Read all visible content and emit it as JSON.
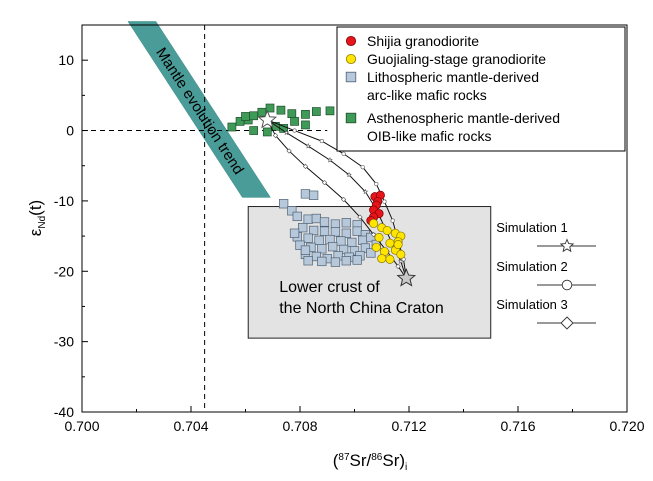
{
  "chart_data": {
    "type": "scatter",
    "xlabel": "(87Sr/86Sr)i",
    "xlabel_parts": {
      "open": "(",
      "sup1": "87",
      "mid": "Sr/",
      "sup2": "86",
      "close": "Sr)",
      "sub": "i"
    },
    "ylabel_parts": {
      "main": "ε",
      "sub": "Nd",
      "tail": "(t)"
    },
    "xlim": [
      0.7,
      0.72
    ],
    "ylim": [
      -40,
      15
    ],
    "xticks": [
      0.7,
      0.704,
      0.708,
      0.712,
      0.716,
      0.72
    ],
    "xtick_labels": [
      "0.700",
      "0.704",
      "0.708",
      "0.712",
      "0.716",
      "0.720"
    ],
    "yticks": [
      -40,
      -30,
      -20,
      -10,
      0,
      10
    ],
    "ytick_labels": [
      "-40",
      "-30",
      "-20",
      "-10",
      "0",
      "10"
    ],
    "reference_lines": {
      "x": 0.7045,
      "y": 0
    },
    "colors": {
      "shijia": "#e8141b",
      "guojialing": "#ffe500",
      "lithospheric": "#b6c8da",
      "asthenospheric": "#3f9a57",
      "mantle_band": "#4a9c98",
      "crust_box": "#e3e3e3"
    },
    "mantle_band": {
      "label": "Mantle evolution trend",
      "start": [
        0.7022,
        15.5
      ],
      "end": [
        0.7064,
        -9.5
      ]
    },
    "crust_box": {
      "label_line1": "Lower crust of",
      "label_line2": "the North China Craton",
      "x_range": [
        0.7061,
        0.715
      ],
      "y_range": [
        -29.5,
        -10.8
      ]
    },
    "endmembers": {
      "mantle_star": [
        0.7068,
        1.5
      ],
      "crust_star": [
        0.7119,
        -21.0
      ]
    },
    "legend_entries": [
      {
        "label": "Shijia granodiorite",
        "marker": "circle",
        "series": "shijia"
      },
      {
        "label": "Guojialing-stage granodiorite",
        "marker": "circle",
        "series": "guojialing"
      },
      {
        "label": "Lithospheric mantle-derived",
        "label2": "arc-like mafic rocks",
        "marker": "square",
        "series": "lithospheric"
      },
      {
        "label": "Asthenospheric mantle-derived",
        "label2": "OIB-like mafic rocks",
        "marker": "square",
        "series": "asthenospheric"
      }
    ],
    "simulation_legend": [
      {
        "label": "Simulation 1",
        "marker": "star"
      },
      {
        "label": "Simulation 2",
        "marker": "circle"
      },
      {
        "label": "Simulation 3",
        "marker": "diamond"
      }
    ],
    "series": [
      {
        "name": "Shijia granodiorite",
        "key": "shijia",
        "points": [
          [
            0.71075,
            -9.4
          ],
          [
            0.71095,
            -9.2
          ],
          [
            0.71085,
            -10.1
          ],
          [
            0.7108,
            -10.6
          ],
          [
            0.7107,
            -11.3
          ],
          [
            0.7109,
            -11.8
          ],
          [
            0.7107,
            -12.3
          ],
          [
            0.7106,
            -12.8
          ]
        ]
      },
      {
        "name": "Guojialing-stage granodiorite",
        "key": "guojialing",
        "points": [
          [
            0.7107,
            -13.2
          ],
          [
            0.711,
            -13.8
          ],
          [
            0.7112,
            -14.2
          ],
          [
            0.7115,
            -14.6
          ],
          [
            0.7117,
            -15.0
          ],
          [
            0.7116,
            -15.8
          ],
          [
            0.7113,
            -16.0
          ],
          [
            0.7108,
            -16.6
          ],
          [
            0.7111,
            -17.2
          ],
          [
            0.7115,
            -17.0
          ],
          [
            0.7117,
            -17.6
          ],
          [
            0.7113,
            -18.3
          ],
          [
            0.711,
            -18.2
          ],
          [
            0.7116,
            -16.2
          ],
          [
            0.7109,
            -15.2
          ]
        ]
      },
      {
        "name": "Lithospheric mantle-derived arc-like mafic rocks",
        "key": "lithospheric",
        "points": [
          [
            0.7082,
            -9.0
          ],
          [
            0.7085,
            -9.2
          ],
          [
            0.7074,
            -10.4
          ],
          [
            0.7077,
            -11.4
          ],
          [
            0.7079,
            -12.2
          ],
          [
            0.7083,
            -12.6
          ],
          [
            0.7086,
            -12.5
          ],
          [
            0.7089,
            -13.0
          ],
          [
            0.7093,
            -13.3
          ],
          [
            0.7097,
            -13.1
          ],
          [
            0.7101,
            -13.4
          ],
          [
            0.7081,
            -13.8
          ],
          [
            0.7085,
            -14.2
          ],
          [
            0.7089,
            -14.3
          ],
          [
            0.7093,
            -14.4
          ],
          [
            0.7097,
            -14.6
          ],
          [
            0.7101,
            -14.3
          ],
          [
            0.7104,
            -14.8
          ],
          [
            0.7079,
            -15.1
          ],
          [
            0.7083,
            -15.3
          ],
          [
            0.7087,
            -15.6
          ],
          [
            0.7091,
            -15.5
          ],
          [
            0.7095,
            -15.7
          ],
          [
            0.7099,
            -15.9
          ],
          [
            0.7103,
            -15.6
          ],
          [
            0.7106,
            -15.2
          ],
          [
            0.708,
            -16.3
          ],
          [
            0.7084,
            -16.6
          ],
          [
            0.7088,
            -16.8
          ],
          [
            0.7092,
            -16.5
          ],
          [
            0.7096,
            -16.9
          ],
          [
            0.71,
            -17.1
          ],
          [
            0.7104,
            -16.7
          ],
          [
            0.7082,
            -17.6
          ],
          [
            0.7086,
            -17.9
          ],
          [
            0.709,
            -18.2
          ],
          [
            0.7094,
            -17.8
          ],
          [
            0.7098,
            -18.0
          ],
          [
            0.7102,
            -17.8
          ],
          [
            0.7106,
            -17.4
          ],
          [
            0.7083,
            -18.5
          ],
          [
            0.7088,
            -18.6
          ],
          [
            0.7093,
            -18.7
          ],
          [
            0.7097,
            -18.5
          ],
          [
            0.7101,
            -18.4
          ],
          [
            0.7078,
            -14.6
          ],
          [
            0.7082,
            -17.0
          ],
          [
            0.7108,
            -16.2
          ]
        ]
      },
      {
        "name": "Asthenospheric mantle-derived OIB-like mafic rocks",
        "key": "asthenospheric",
        "points": [
          [
            0.7055,
            0.5
          ],
          [
            0.7058,
            1.3
          ],
          [
            0.7061,
            1.5
          ],
          [
            0.7063,
            2.1
          ],
          [
            0.7066,
            2.6
          ],
          [
            0.7069,
            3.2
          ],
          [
            0.7073,
            2.9
          ],
          [
            0.7077,
            2.4
          ],
          [
            0.7078,
            1.3
          ],
          [
            0.7071,
            0.6
          ],
          [
            0.7074,
            0.3
          ],
          [
            0.7068,
            -0.2
          ],
          [
            0.7063,
            0.0
          ],
          [
            0.7082,
            2.3
          ],
          [
            0.7086,
            2.7
          ],
          [
            0.7091,
            2.8
          ],
          [
            0.7097,
            4.2
          ],
          [
            0.7082,
            0.8
          ],
          [
            0.71,
            0.0
          ],
          [
            0.706,
            2.0
          ]
        ]
      }
    ],
    "mixing_curves": [
      {
        "name": "Simulation 1",
        "marker": "star",
        "points": [
          [
            0.7068,
            1.5
          ],
          [
            0.7075,
            -0.3
          ],
          [
            0.7083,
            -2.2
          ],
          [
            0.7091,
            -4.2
          ],
          [
            0.7098,
            -6.3
          ],
          [
            0.7104,
            -8.7
          ],
          [
            0.7108,
            -11.2
          ],
          [
            0.7111,
            -13.7
          ],
          [
            0.7114,
            -16.2
          ],
          [
            0.7117,
            -18.6
          ],
          [
            0.7119,
            -21.0
          ]
        ]
      },
      {
        "name": "Simulation 2",
        "marker": "circle",
        "points": [
          [
            0.7068,
            1.5
          ],
          [
            0.7078,
            0.0
          ],
          [
            0.7088,
            -1.5
          ],
          [
            0.7096,
            -3.3
          ],
          [
            0.7103,
            -5.2
          ],
          [
            0.7108,
            -7.6
          ],
          [
            0.7111,
            -10.1
          ],
          [
            0.7114,
            -12.8
          ],
          [
            0.7116,
            -15.6
          ],
          [
            0.7118,
            -18.3
          ],
          [
            0.7119,
            -21.0
          ]
        ]
      },
      {
        "name": "Simulation 3",
        "marker": "diamond",
        "points": [
          [
            0.7068,
            1.5
          ],
          [
            0.7071,
            -0.7
          ],
          [
            0.7076,
            -2.9
          ],
          [
            0.7082,
            -5.1
          ],
          [
            0.7089,
            -7.4
          ],
          [
            0.7096,
            -9.8
          ],
          [
            0.7102,
            -12.3
          ],
          [
            0.7107,
            -14.8
          ],
          [
            0.7112,
            -17.2
          ],
          [
            0.7116,
            -19.3
          ],
          [
            0.7119,
            -21.0
          ]
        ]
      }
    ]
  }
}
